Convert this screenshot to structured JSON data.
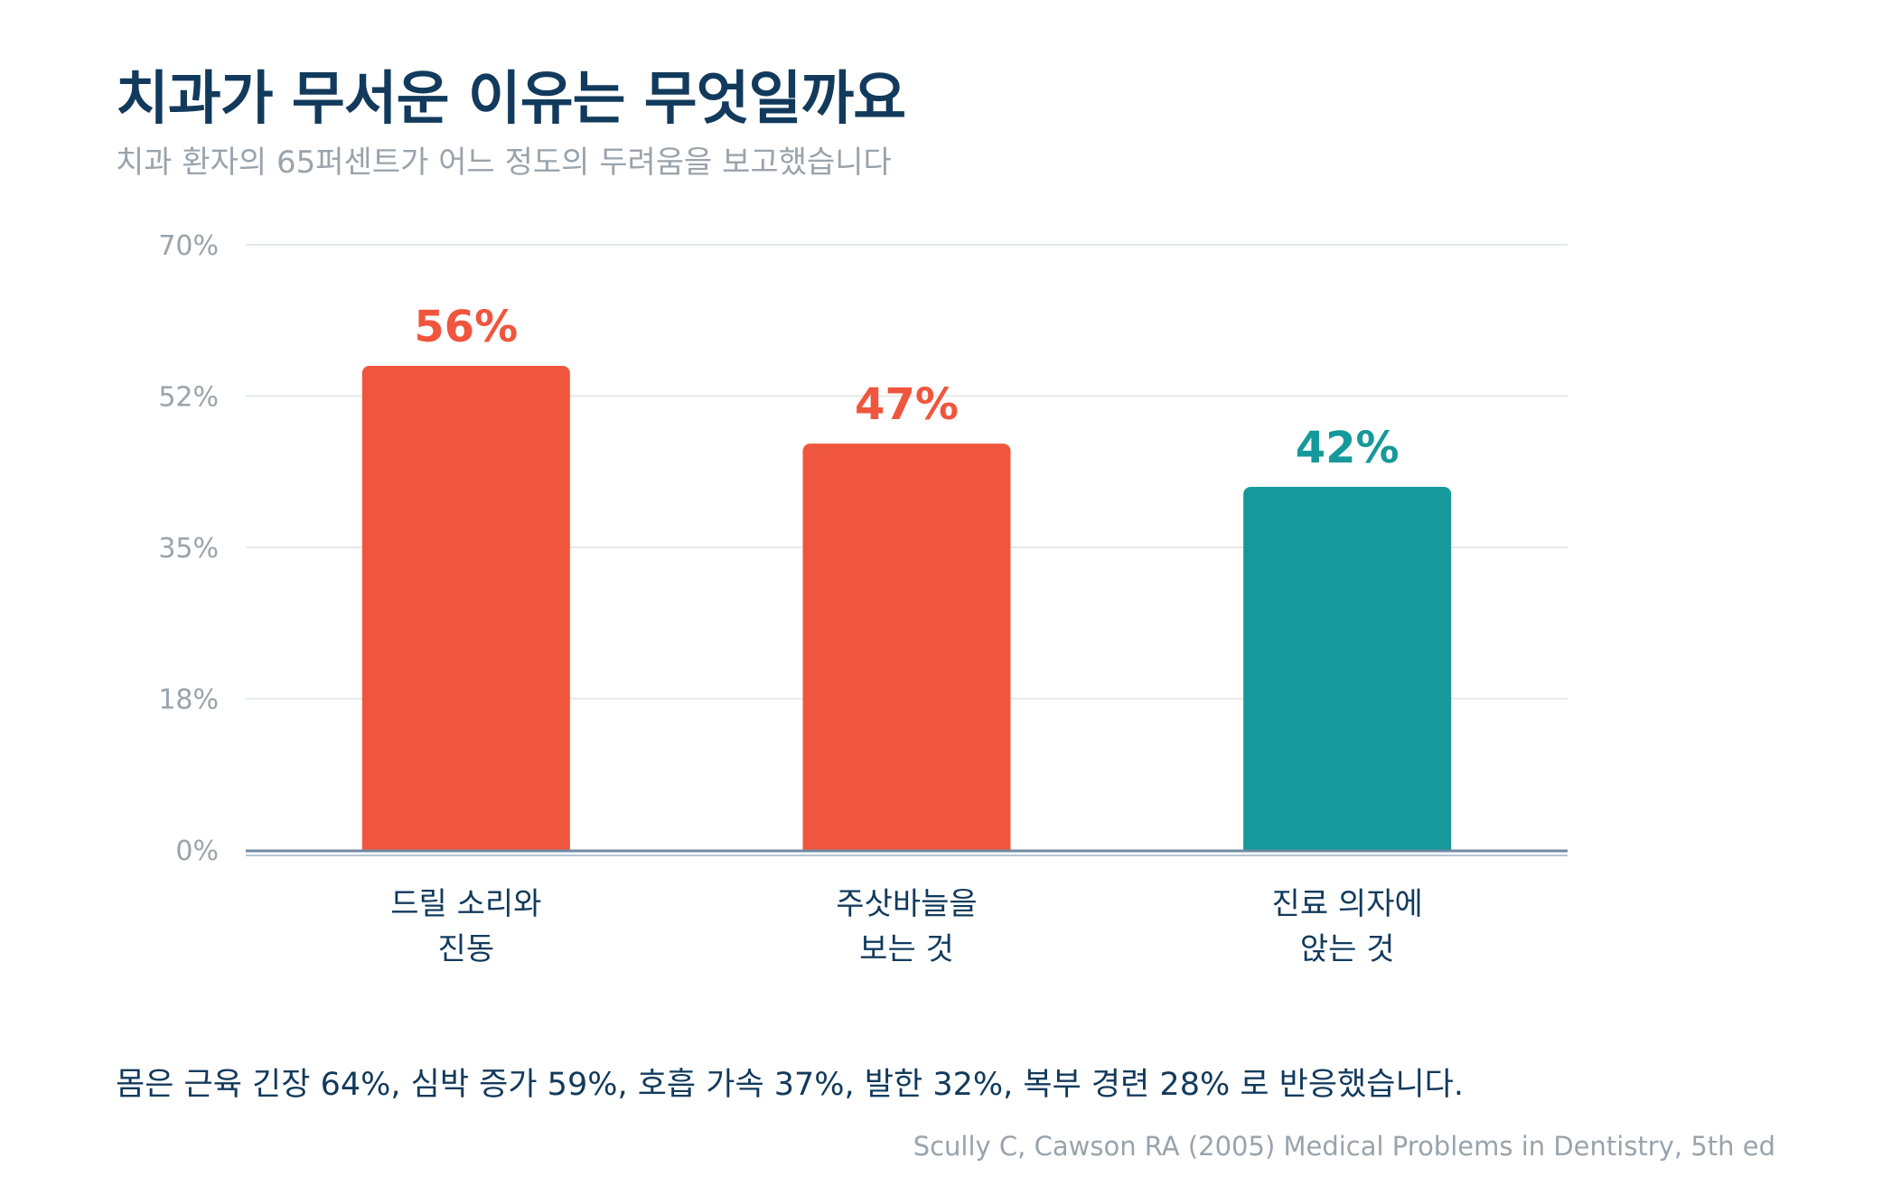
{
  "title": "치과가 무서운 이유는 무엇일까요",
  "subtitle": "치과 환자의 65퍼센트가 어느 정도의 두려움을 보고했습니다",
  "footnote": "몸은 근육 긴장 64%, 심박 증가 59%, 호흡 가속 37%, 발한 32%, 복부 경련 28% 로 반응했습니다.",
  "source": "Scully C, Cawson RA (2005) Medical Problems in Dentistry, 5th ed",
  "colors": {
    "title": "#123a5c",
    "muted": "#9aa3ab",
    "accent_red": "#ef563d",
    "accent_teal": "#16999a",
    "grid": "#e6e8ea",
    "baseline": "#6f8aa3"
  },
  "chart_data": {
    "type": "bar",
    "categories": [
      [
        "드릴 소리와",
        "진동"
      ],
      [
        "주삿바늘을",
        "보는 것"
      ],
      [
        "진료 의자에",
        "앉는 것"
      ]
    ],
    "values": [
      56,
      47,
      42
    ],
    "value_labels": [
      "56%",
      "47%",
      "42%"
    ],
    "bar_colors": [
      "#ef563d",
      "#ef563d",
      "#16999a"
    ],
    "ylim": [
      0,
      70
    ],
    "yticks": [
      0,
      17.5,
      35,
      52.5,
      70
    ],
    "ytick_labels": [
      "0%",
      "18%",
      "35%",
      "52%",
      "70%"
    ],
    "grid": true,
    "xlabel": "",
    "ylabel": ""
  }
}
